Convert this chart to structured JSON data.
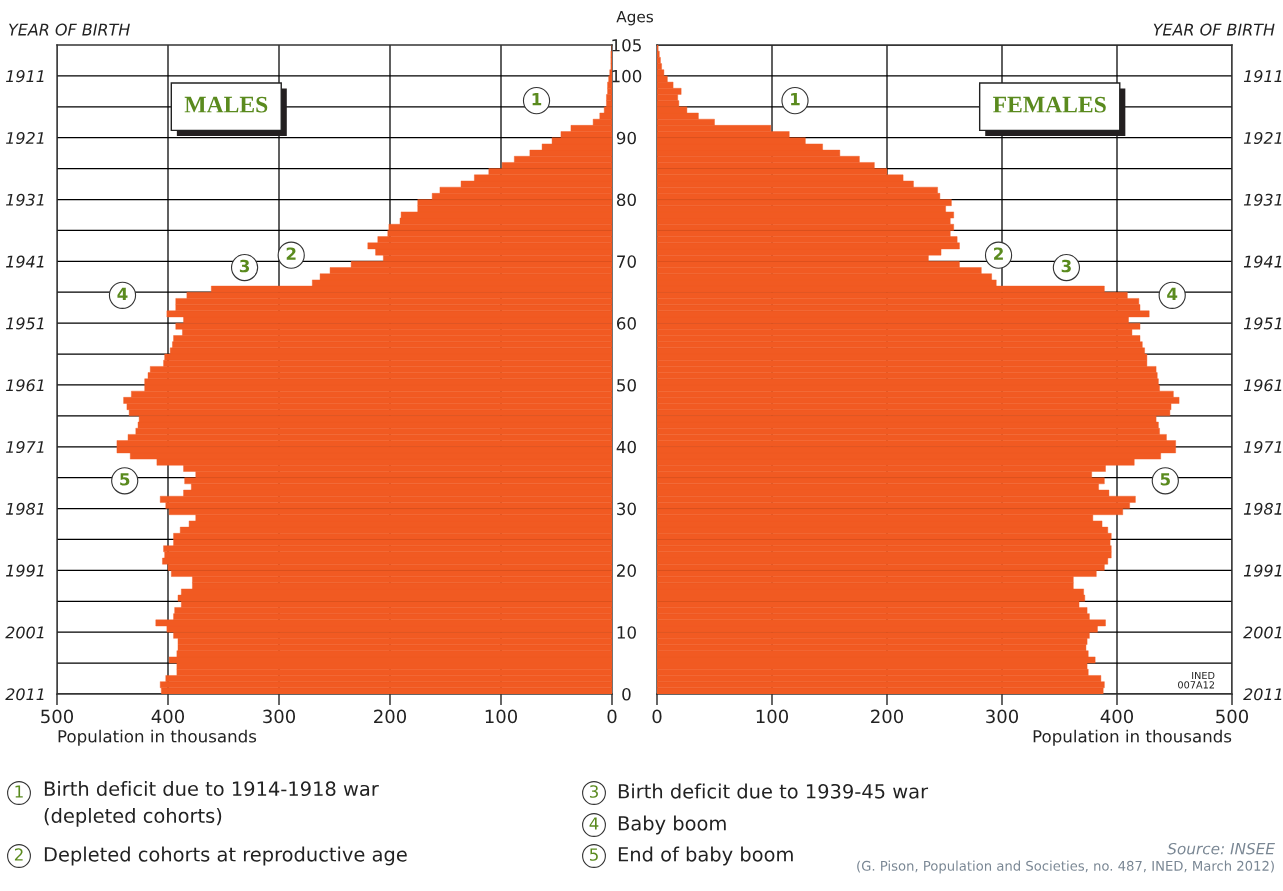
{
  "chart_data": [
    {
      "type": "bar",
      "orientation": "horizontal",
      "title": "MALES",
      "color": "#f15a22",
      "x": [
        0,
        1,
        2,
        3,
        4,
        5,
        6,
        7,
        8,
        9,
        10,
        11,
        12,
        13,
        14,
        15,
        16,
        17,
        18,
        19,
        20,
        21,
        22,
        23,
        24,
        25,
        26,
        27,
        28,
        29,
        30,
        31,
        32,
        33,
        34,
        35,
        36,
        37,
        38,
        39,
        40,
        41,
        42,
        43,
        44,
        45,
        46,
        47,
        48,
        49,
        50,
        51,
        52,
        53,
        54,
        55,
        56,
        57,
        58,
        59,
        60,
        61,
        62,
        63,
        64,
        65,
        66,
        67,
        68,
        69,
        70,
        71,
        72,
        73,
        74,
        75,
        76,
        77,
        78,
        79,
        80,
        81,
        82,
        83,
        84,
        85,
        86,
        87,
        88,
        89,
        90,
        91,
        92,
        93,
        94,
        95,
        96,
        97,
        98,
        99,
        100,
        101,
        102,
        103,
        104
      ],
      "values": [
        406,
        407,
        402,
        392,
        392,
        399,
        392,
        391,
        391,
        395,
        401,
        411,
        395,
        394,
        388,
        391,
        388,
        378,
        378,
        397,
        400,
        405,
        403,
        404,
        395,
        395,
        389,
        381,
        375,
        399,
        402,
        407,
        386,
        379,
        385,
        375,
        386,
        410,
        434,
        446,
        446,
        436,
        429,
        427,
        426,
        435,
        437,
        440,
        433,
        421,
        421,
        418,
        416,
        404,
        403,
        398,
        396,
        395,
        387,
        393,
        386,
        401,
        393,
        393,
        383,
        361,
        270,
        263,
        254,
        235,
        206,
        213,
        220,
        211,
        202,
        201,
        191,
        190,
        175,
        175,
        162,
        155,
        136,
        124,
        111,
        99,
        88,
        74,
        63,
        54,
        46,
        37,
        17,
        11,
        7,
        5,
        5,
        4,
        4,
        3,
        2,
        1,
        1,
        1,
        0
      ],
      "xlim": [
        500,
        0
      ],
      "xticks": [
        500,
        400,
        300,
        200,
        100,
        0
      ],
      "xlabel": "Population in thousands",
      "ylim": [
        0,
        105
      ],
      "y2label": "YEAR OF BIRTH",
      "y2lim": [
        2011,
        1906
      ],
      "y2ticks": [
        2011,
        {
          "value": 2006,
          "label": null
        },
        2001,
        {
          "value": 1996,
          "label": null
        },
        1991,
        {
          "value": 1986,
          "label": null
        },
        1981,
        {
          "value": 1976,
          "label": null
        },
        1971,
        {
          "value": 1966,
          "label": null
        },
        1961,
        {
          "value": 1956,
          "label": null
        },
        1951,
        {
          "value": 1946,
          "label": null
        },
        1941,
        {
          "value": 1936,
          "label": null
        },
        1931,
        {
          "value": 1926,
          "label": null
        },
        1921,
        {
          "value": 1916,
          "label": null
        },
        1911
      ],
      "grid": true,
      "annotations": [
        {
          "text": "1",
          "x": 68,
          "y": 96
        },
        {
          "text": "2",
          "x": 289,
          "y": 71
        },
        {
          "text": "3",
          "x": 331,
          "y": 69
        },
        {
          "text": "4",
          "x": 441,
          "y": 64.5
        },
        {
          "text": "5",
          "x": 439,
          "y": 34.5
        },
        "1",
        "Birth deficit due to 1914-1918 war\n(depleted cohorts)",
        "2",
        "Depleted cohorts at reproductive age",
        "3",
        "Birth deficit due to 1939-45 war",
        "4",
        "Baby boom",
        "5",
        "End of baby boom",
        "Source: INSEE",
        "(G. Pison, Population and Societies, no. 487, INED, March 2012)"
      ]
    },
    {
      "type": "bar",
      "orientation": "horizontal",
      "title": "FEMALES",
      "color": "#f15a22",
      "x": [
        0,
        1,
        2,
        3,
        4,
        5,
        6,
        7,
        8,
        9,
        10,
        11,
        12,
        13,
        14,
        15,
        16,
        17,
        18,
        19,
        20,
        21,
        22,
        23,
        24,
        25,
        26,
        27,
        28,
        29,
        30,
        31,
        32,
        33,
        34,
        35,
        36,
        37,
        38,
        39,
        40,
        41,
        42,
        43,
        44,
        45,
        46,
        47,
        48,
        49,
        50,
        51,
        52,
        53,
        54,
        55,
        56,
        57,
        58,
        59,
        60,
        61,
        62,
        63,
        64,
        65,
        66,
        67,
        68,
        69,
        70,
        71,
        72,
        73,
        74,
        75,
        76,
        77,
        78,
        79,
        80,
        81,
        82,
        83,
        84,
        85,
        86,
        87,
        88,
        89,
        90,
        91,
        92,
        93,
        94,
        95,
        96,
        97,
        98,
        99,
        100,
        101,
        102,
        103,
        104
      ],
      "values": [
        388,
        389,
        386,
        375,
        374,
        381,
        375,
        373,
        374,
        376,
        383,
        390,
        376,
        374,
        367,
        372,
        371,
        362,
        362,
        382,
        389,
        392,
        395,
        395,
        394,
        395,
        392,
        387,
        379,
        405,
        411,
        416,
        393,
        384,
        389,
        378,
        390,
        415,
        438,
        451,
        451,
        443,
        437,
        436,
        434,
        446,
        447,
        454,
        449,
        437,
        436,
        435,
        434,
        426,
        426,
        424,
        422,
        420,
        413,
        420,
        410,
        428,
        420,
        419,
        409,
        389,
        295,
        291,
        282,
        263,
        236,
        247,
        263,
        261,
        255,
        258,
        255,
        258,
        251,
        256,
        246,
        244,
        223,
        214,
        200,
        189,
        176,
        159,
        144,
        129,
        115,
        99,
        50,
        36,
        26,
        19,
        18,
        21,
        14,
        9,
        6,
        4,
        3,
        2,
        1
      ],
      "xlim": [
        0,
        500
      ],
      "xticks": [
        0,
        100,
        200,
        300,
        400,
        500
      ],
      "xlabel": "Population in thousands",
      "ylim": [
        0,
        105
      ],
      "yticks": [
        0,
        {
          "value": 5,
          "label": null
        },
        10,
        {
          "value": 15,
          "label": null
        },
        20,
        {
          "value": 25,
          "label": null
        },
        30,
        {
          "value": 35,
          "label": null
        },
        40,
        {
          "value": 45,
          "label": null
        },
        50,
        {
          "value": 55,
          "label": null
        },
        60,
        {
          "value": 65,
          "label": null
        },
        70,
        {
          "value": 75,
          "label": null
        },
        80,
        {
          "value": 85,
          "label": null
        },
        90,
        {
          "value": 95,
          "label": null
        },
        100,
        105
      ],
      "ylabel": "Ages",
      "y2lim": [
        2011,
        1906
      ],
      "y2label": "YEAR OF BIRTH",
      "y2ticks": [
        2011,
        {
          "value": 2006,
          "label": null
        },
        2001,
        {
          "value": 1996,
          "label": null
        },
        1991,
        {
          "value": 1986,
          "label": null
        },
        1981,
        {
          "value": 1976,
          "label": null
        },
        1971,
        {
          "value": 1966,
          "label": null
        },
        1961,
        {
          "value": 1956,
          "label": null
        },
        1951,
        {
          "value": 1946,
          "label": null
        },
        1941,
        {
          "value": 1936,
          "label": null
        },
        1931,
        {
          "value": 1926,
          "label": null
        },
        1921,
        {
          "value": 1916,
          "label": null
        },
        1911
      ],
      "grid": true,
      "annotations": [
        {
          "text": "1",
          "x": 120,
          "y": 96
        },
        {
          "text": "2",
          "x": 297,
          "y": 71
        },
        {
          "text": "3",
          "x": 356,
          "y": 69
        },
        {
          "text": "4",
          "x": 448,
          "y": 64.5
        },
        {
          "text": "5",
          "x": 442,
          "y": 34.5
        },
        "INED\n007A12"
      ]
    }
  ]
}
